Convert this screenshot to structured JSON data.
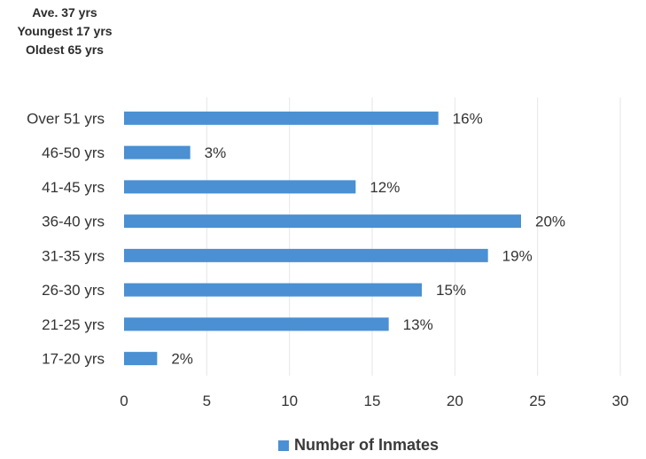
{
  "stats": {
    "average": "Ave. 37 yrs",
    "youngest": "Youngest 17 yrs",
    "oldest": "Oldest 65 yrs"
  },
  "chart_data": {
    "type": "bar",
    "orientation": "horizontal",
    "title": "",
    "xlabel": "",
    "ylabel": "",
    "xlim": [
      0,
      30
    ],
    "x_ticks": [
      "0",
      "5",
      "10",
      "15",
      "20",
      "25",
      "30"
    ],
    "grid": true,
    "legend_position": "bottom",
    "categories": [
      "Over 51 yrs",
      "46-50 yrs",
      "41-45 yrs",
      "36-40 yrs",
      "31-35 yrs",
      "26-30 yrs",
      "21-25 yrs",
      "17-20 yrs"
    ],
    "series": [
      {
        "name": "Number of Inmates",
        "values": [
          19,
          4,
          14,
          24,
          22,
          18,
          16,
          2
        ],
        "labels": [
          "16%",
          "3%",
          "12%",
          "20%",
          "19%",
          "15%",
          "13%",
          "2%"
        ],
        "color": "#4a90d2"
      }
    ]
  }
}
